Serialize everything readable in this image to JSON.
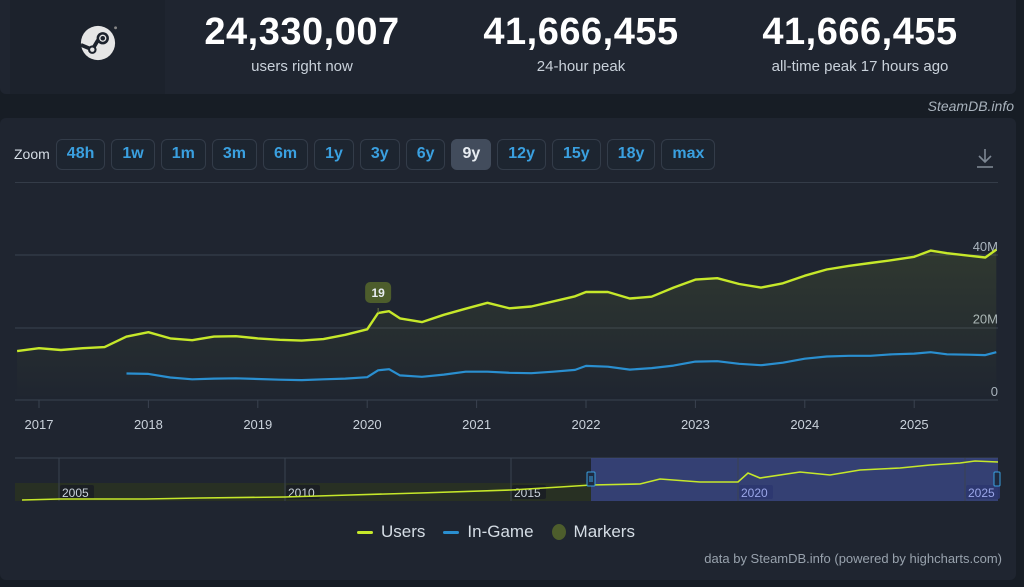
{
  "header": {
    "logo_icon": "steam-logo-icon",
    "stats": [
      {
        "value": "24,330,007",
        "label": "users right now"
      },
      {
        "value": "41,666,455",
        "label": "24-hour peak"
      },
      {
        "value": "41,666,455",
        "label": "all-time peak 17 hours ago"
      }
    ],
    "credit": "SteamDB.info"
  },
  "toolbar": {
    "zoom_label": "Zoom",
    "zoom_options": [
      "48h",
      "1w",
      "1m",
      "3m",
      "6m",
      "1y",
      "3y",
      "6y",
      "9y",
      "12y",
      "15y",
      "18y",
      "max"
    ],
    "active_zoom": "9y",
    "download_icon": "download-icon"
  },
  "legend": {
    "items": [
      {
        "label": "Users",
        "color": "#c6e82a"
      },
      {
        "label": "In-Game",
        "color": "#2a8fd0"
      },
      {
        "label": "Markers",
        "color": "#4d5d2c"
      }
    ]
  },
  "footer": {
    "credit": "data by SteamDB.info (powered by highcharts.com)"
  },
  "colors": {
    "users": "#c6e82a",
    "in_game": "#2a8fd0",
    "marker": "#4d5d2c",
    "background": "#1f2530",
    "navigator_selection": "#3c4a8a"
  },
  "chart_data": {
    "type": "line",
    "title": "Steam concurrent users",
    "xlabel": "",
    "ylabel": "",
    "x_ticks": [
      "2017",
      "2018",
      "2019",
      "2020",
      "2021",
      "2022",
      "2023",
      "2024",
      "2025"
    ],
    "y_ticks": [
      "0",
      "20M",
      "40M"
    ],
    "ylim": [
      0,
      45000000
    ],
    "grid": true,
    "legend_position": "bottom",
    "x": [
      2016.8,
      2017.0,
      2017.2,
      2017.4,
      2017.6,
      2017.8,
      2018.0,
      2018.2,
      2018.4,
      2018.6,
      2018.8,
      2019.0,
      2019.2,
      2019.4,
      2019.6,
      2019.8,
      2020.0,
      2020.1,
      2020.2,
      2020.3,
      2020.5,
      2020.7,
      2020.9,
      2021.1,
      2021.3,
      2021.5,
      2021.7,
      2021.9,
      2022.0,
      2022.2,
      2022.4,
      2022.6,
      2022.8,
      2023.0,
      2023.2,
      2023.4,
      2023.6,
      2023.8,
      2024.0,
      2024.2,
      2024.4,
      2024.6,
      2024.8,
      2025.0,
      2025.15,
      2025.3,
      2025.5,
      2025.65,
      2025.75
    ],
    "series": [
      {
        "name": "Users",
        "values": [
          13.5,
          14.3,
          13.8,
          14.3,
          14.6,
          17.5,
          18.7,
          17.0,
          16.5,
          17.5,
          17.6,
          17.0,
          16.6,
          16.4,
          16.8,
          18.0,
          19.5,
          24.0,
          24.5,
          22.5,
          21.5,
          23.5,
          25.2,
          26.8,
          25.3,
          25.8,
          27.2,
          28.6,
          29.8,
          29.8,
          28.0,
          28.5,
          31.0,
          33.2,
          33.6,
          32.0,
          31.0,
          32.2,
          34.3,
          36.0,
          37.0,
          37.8,
          38.6,
          39.5,
          41.2,
          40.5,
          39.8,
          39.3,
          41.5
        ]
      },
      {
        "name": "In-Game",
        "values": [
          null,
          null,
          null,
          null,
          null,
          7.3,
          7.2,
          6.2,
          5.7,
          5.9,
          6.0,
          5.8,
          5.6,
          5.5,
          5.7,
          5.9,
          6.3,
          8.2,
          8.5,
          6.8,
          6.4,
          7.0,
          7.8,
          7.8,
          7.5,
          7.4,
          7.8,
          8.3,
          9.4,
          9.2,
          8.4,
          8.8,
          9.5,
          10.6,
          10.7,
          10.0,
          9.6,
          10.3,
          11.4,
          12.0,
          12.2,
          12.2,
          12.6,
          12.8,
          13.2,
          12.6,
          12.5,
          12.4,
          13.2
        ]
      }
    ],
    "units": "millions",
    "markers": [
      {
        "label": "19",
        "x": 2020.1
      }
    ],
    "navigator": {
      "x_ticks": [
        "2005",
        "2010",
        "2015",
        "2020",
        "2025"
      ],
      "selected_range": [
        "2016.8",
        "2025.75"
      ]
    }
  }
}
